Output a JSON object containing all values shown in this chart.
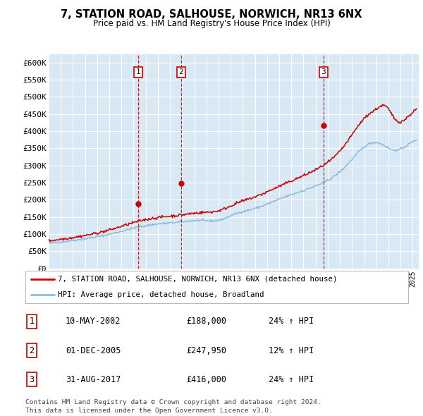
{
  "title": "7, STATION ROAD, SALHOUSE, NORWICH, NR13 6NX",
  "subtitle": "Price paid vs. HM Land Registry's House Price Index (HPI)",
  "ylabel_ticks": [
    "£0",
    "£50K",
    "£100K",
    "£150K",
    "£200K",
    "£250K",
    "£300K",
    "£350K",
    "£400K",
    "£450K",
    "£500K",
    "£550K",
    "£600K"
  ],
  "ytick_values": [
    0,
    50000,
    100000,
    150000,
    200000,
    250000,
    300000,
    350000,
    400000,
    450000,
    500000,
    550000,
    600000
  ],
  "ylim": [
    0,
    625000
  ],
  "xlim_start": 1995,
  "xlim_end": 2025.5,
  "background_color": "#d9e8f5",
  "grid_color": "#ffffff",
  "sale_dates": [
    2002.36,
    2005.92,
    2017.66
  ],
  "sale_prices": [
    188000,
    247950,
    416000
  ],
  "sale_labels": [
    "1",
    "2",
    "3"
  ],
  "sale_date_str": [
    "10-MAY-2002",
    "01-DEC-2005",
    "31-AUG-2017"
  ],
  "sale_price_str": [
    "£188,000",
    "£247,950",
    "£416,000"
  ],
  "sale_hpi_str": [
    "24% ↑ HPI",
    "12% ↑ HPI",
    "24% ↑ HPI"
  ],
  "legend_line1": "7, STATION ROAD, SALHOUSE, NORWICH, NR13 6NX (detached house)",
  "legend_line2": "HPI: Average price, detached house, Broadland",
  "footer1": "Contains HM Land Registry data © Crown copyright and database right 2024.",
  "footer2": "This data is licensed under the Open Government Licence v3.0.",
  "hpi_color": "#8bbcdc",
  "sale_line_color": "#cc0000",
  "dashed_line_color": "#cc0000"
}
